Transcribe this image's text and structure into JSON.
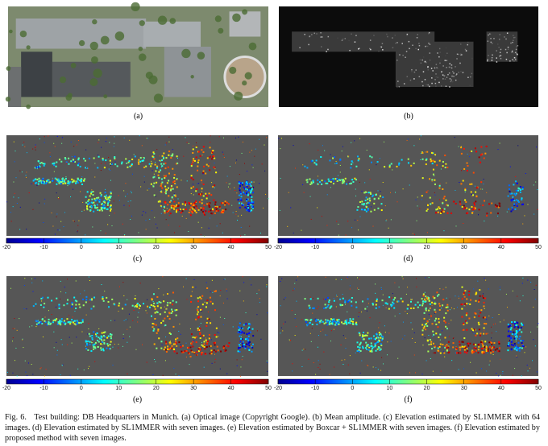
{
  "figure": {
    "panels": [
      {
        "label": "(a)",
        "kind": "optical"
      },
      {
        "label": "(b)",
        "kind": "amplitude"
      },
      {
        "label": "(c)",
        "kind": "elevation",
        "density": 0.9
      },
      {
        "label": "(d)",
        "kind": "elevation",
        "density": 0.45
      },
      {
        "label": "(e)",
        "kind": "elevation",
        "density": 0.7
      },
      {
        "label": "(f)",
        "kind": "elevation",
        "density": 0.85
      }
    ],
    "colorbar_ticks": [
      -20,
      -10,
      0,
      10,
      20,
      30,
      40,
      50
    ],
    "caption": {
      "label": "Fig. 6.",
      "text": "Test building: DB Headquarters in Munich. (a) Optical image (Copyright Google). (b) Mean amplitude. (c) Elevation estimated by SL1MMER with 64 images. (d) Elevation estimated by SL1MMER with seven images. (e) Elevation estimated by Boxcar + SL1MMER with seven images. (f) Elevation estimated by proposed method with seven images."
    }
  }
}
